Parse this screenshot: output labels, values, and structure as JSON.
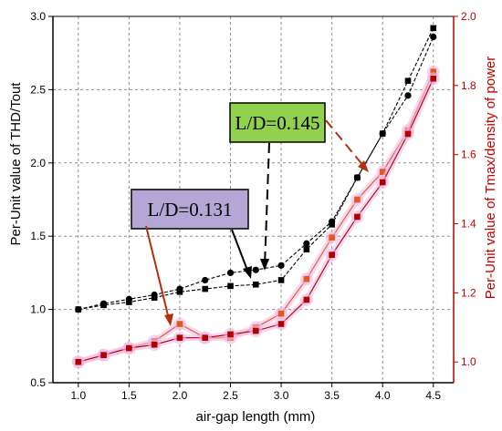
{
  "chart_data": {
    "type": "line",
    "xlabel": "air-gap length (mm)",
    "ylabel_left": "Per-Unit value of THD/Tout",
    "ylabel_right": "Per-Unit value of Tmax/density of power",
    "x": [
      1.0,
      1.25,
      1.5,
      1.75,
      2.0,
      2.25,
      2.5,
      2.75,
      3.0,
      3.25,
      3.5,
      3.75,
      4.0,
      4.25,
      4.5
    ],
    "xticks": [
      "1.0",
      "1.5",
      "2.0",
      "2.5",
      "3.0",
      "3.5",
      "4.0",
      "4.5"
    ],
    "yticks_left": [
      "0.5",
      "1.0",
      "1.5",
      "2.0",
      "2.5",
      "3.0"
    ],
    "yticks_right": [
      "1.0",
      "1.2",
      "1.4",
      "1.6",
      "1.8",
      "2.0"
    ],
    "xlim": [
      0.75,
      4.7
    ],
    "ylim_left": [
      0.5,
      3.0
    ],
    "ylim_right": [
      0.94,
      2.0
    ],
    "grid": true,
    "series": [
      {
        "group": "L/D=0.145",
        "axis": "left",
        "marker": "circle",
        "color": "#000000",
        "values": [
          1.0,
          1.04,
          1.07,
          1.1,
          1.14,
          1.2,
          1.25,
          1.27,
          1.3,
          1.45,
          1.6,
          1.9,
          2.2,
          2.46,
          2.86
        ]
      },
      {
        "group": "L/D=0.131",
        "axis": "left",
        "marker": "square",
        "color": "#000000",
        "values": [
          1.0,
          1.03,
          1.05,
          1.08,
          1.12,
          1.14,
          1.16,
          1.17,
          1.2,
          1.41,
          1.58,
          1.9,
          2.2,
          2.56,
          2.92
        ]
      },
      {
        "group": "L/D=0.145",
        "axis": "right",
        "marker": "square",
        "color": "#e05a20",
        "values": [
          1.0,
          1.02,
          1.04,
          1.06,
          1.11,
          1.07,
          1.07,
          1.1,
          1.14,
          1.24,
          1.36,
          1.47,
          1.55,
          1.67,
          1.84
        ]
      },
      {
        "group": "L/D=0.131",
        "axis": "right",
        "marker": "square",
        "color": "#b00000",
        "values": [
          1.0,
          1.02,
          1.04,
          1.05,
          1.07,
          1.07,
          1.08,
          1.09,
          1.11,
          1.18,
          1.31,
          1.42,
          1.52,
          1.66,
          1.82
        ]
      }
    ],
    "annotations": [
      {
        "text": "L/D=0.145",
        "box_color": "#92d050"
      },
      {
        "text": "L/D=0.131",
        "box_color": "#b4a7d6"
      }
    ]
  }
}
